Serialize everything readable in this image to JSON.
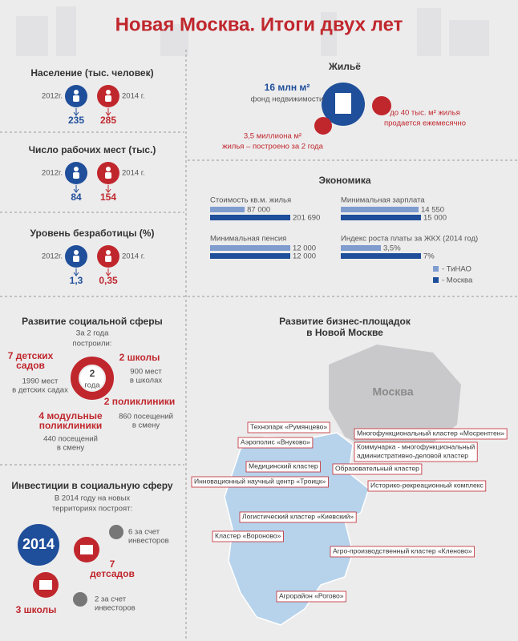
{
  "header": {
    "title": "Новая Москва. Итоги двух лет"
  },
  "population": {
    "title": "Население (тыс. человек)",
    "years": [
      "2012г.",
      "2014 г."
    ],
    "values": [
      235,
      285
    ]
  },
  "jobs": {
    "title": "Число рабочих мест (тыс.)",
    "years": [
      "2012г.",
      "2014 г."
    ],
    "values": [
      84,
      154
    ]
  },
  "unemployment": {
    "title": "Уровень безработицы (%)",
    "years": [
      "2012г.",
      "2014 г."
    ],
    "values": [
      "1,3",
      "0,35"
    ]
  },
  "social": {
    "title": "Развитие социальной сферы",
    "subtitle": [
      "За 2 года",
      "построили:"
    ],
    "center": [
      "2",
      "года"
    ],
    "items": [
      {
        "title": [
          "7 детских",
          "садов"
        ],
        "text": [
          "1990 мест",
          "в детских садах"
        ]
      },
      {
        "title": [
          "2 школы"
        ],
        "text": [
          "900 мест",
          "в школах"
        ]
      },
      {
        "title": [
          "2 поликлиники"
        ],
        "text": [
          "860 посещений",
          "в смену"
        ]
      },
      {
        "title": [
          "4 модульные",
          "поликлиники"
        ],
        "text": [
          "440 посещений",
          "в смену"
        ]
      }
    ]
  },
  "investments": {
    "title": "Инвестиции в социальную сферу",
    "subtitle": [
      "В 2014 году на новых",
      "территориях построят:"
    ],
    "year": "2014",
    "kindergartens": [
      "7",
      "детсадов"
    ],
    "kindergartens_investors": [
      "6 за счет",
      "инвесторов"
    ],
    "schools": "3 школы",
    "schools_investors": [
      "2 за счет",
      "инвесторов"
    ]
  },
  "housing": {
    "title": "Жильё",
    "fund": [
      "16 млн м²",
      "фонд недвижимости"
    ],
    "sold": [
      "до 40 тыс. м² жилья",
      "продается ежемесячно"
    ],
    "built": [
      "3,5 миллиона м²",
      "жилья – построено за 2 года"
    ]
  },
  "economy": {
    "title": "Экономика",
    "series": [
      {
        "name": "- ТиНАО",
        "color": "#7f9ccf"
      },
      {
        "name": "- Москва",
        "color": "#1f4e9a"
      }
    ],
    "items": [
      {
        "label": "Стоимость кв.м. жилья",
        "values": [
          87000,
          201690
        ],
        "value_labels": [
          "87 000",
          "201 690"
        ]
      },
      {
        "label": "Минимальная зарплата",
        "values": [
          14550,
          15000
        ],
        "value_labels": [
          "14 550",
          "15 000"
        ]
      },
      {
        "label": "Минимальная пенсия",
        "values": [
          12000,
          12000
        ],
        "value_labels": [
          "12 000",
          "12 000"
        ]
      },
      {
        "label": "Индекс роста платы за ЖКХ (2014 год)",
        "values": [
          3.5,
          7
        ],
        "value_labels": [
          "3,5%",
          "7%"
        ]
      }
    ]
  },
  "business": {
    "title": [
      "Развитие бизнес-площадок",
      "в Новой Москве"
    ],
    "city": "Москва",
    "sites": [
      [
        "Технопарк «Румянцево»"
      ],
      [
        "Многофункциональный кластер «Мосрентген»"
      ],
      [
        "Аэрополис «Внуково»"
      ],
      [
        "Коммунарка - многофункциональный",
        "административно-деловой кластер"
      ],
      [
        "Медицинский кластер"
      ],
      [
        "Образовательный кластер"
      ],
      [
        "Инновационный научный центр «Троицк»"
      ],
      [
        "Историко-рекреационный комплекс"
      ],
      [
        "Логистический кластер «Киевский»"
      ],
      [
        "Кластер «Вороново»"
      ],
      [
        "Агро-производственный кластер «Кленово»"
      ],
      [
        "Агрорайон «Рогово»"
      ]
    ]
  }
}
